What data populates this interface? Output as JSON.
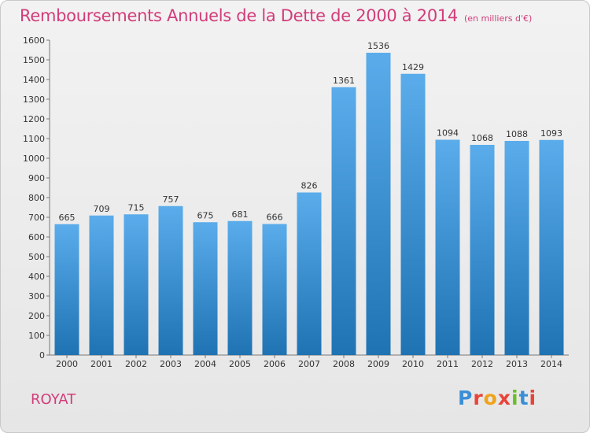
{
  "header": {
    "title": "Remboursements Annuels de la Dette de 2000 à 2014",
    "subtitle": "(en milliers d'€)"
  },
  "footer": {
    "town": "ROYAT",
    "brand": "Proxiti"
  },
  "colors": {
    "title": "#d23c7a",
    "bar_top": "#5aaceb",
    "bar_bottom": "#1f73b3",
    "brand_letters": [
      "#3a8fd6",
      "#e8443a",
      "#f0a21a",
      "#e8443a",
      "#6bbf2a",
      "#3a8fd6",
      "#e8443a"
    ]
  },
  "chart_data": {
    "type": "bar",
    "categories": [
      "2000",
      "2001",
      "2002",
      "2003",
      "2004",
      "2005",
      "2006",
      "2007",
      "2008",
      "2009",
      "2010",
      "2011",
      "2012",
      "2013",
      "2014"
    ],
    "values": [
      665,
      709,
      715,
      757,
      675,
      681,
      666,
      826,
      1361,
      1536,
      1429,
      1094,
      1068,
      1088,
      1093
    ],
    "value_labels": [
      "665",
      "709",
      "715",
      "757",
      "675",
      "681",
      "666",
      "826",
      "1361",
      "1536",
      "1429",
      "1094",
      "1068",
      "1088",
      "1093"
    ],
    "title": "Remboursements Annuels de la Dette de 2000 à 2014",
    "xlabel": "",
    "ylabel": "",
    "ylim": [
      0,
      1600
    ],
    "yticks": [
      "0",
      "100",
      "200",
      "300",
      "400",
      "500",
      "600",
      "700",
      "800",
      "900",
      "1000",
      "1100",
      "1200",
      "1300",
      "1400",
      "1500",
      "1600"
    ],
    "grid": false,
    "legend": "none"
  }
}
